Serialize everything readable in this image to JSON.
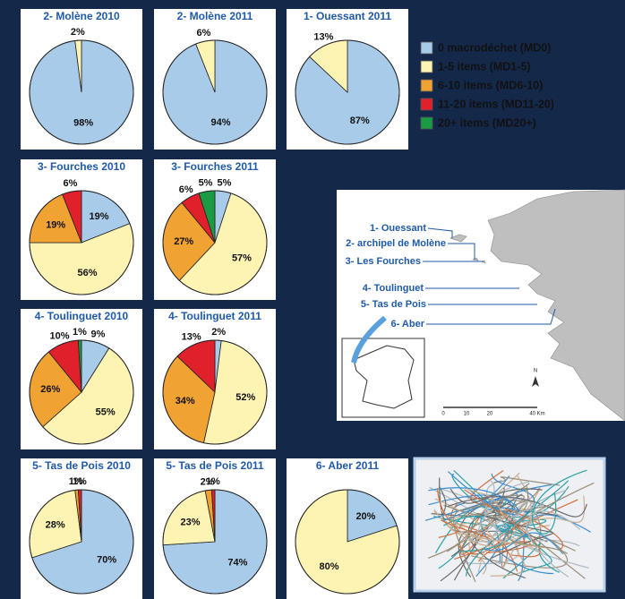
{
  "legend": {
    "labels": [
      "0 macrodéchet (MD0)",
      "1-5 items (MD1-5)",
      "6-10 items (MD6-10)",
      "11-20 items (MD11-20)",
      "20+ items (MD20+)"
    ],
    "colors": [
      "#a9cbea",
      "#fdf4b4",
      "#f0a232",
      "#e0202a",
      "#1b9a44"
    ]
  },
  "chart_data": [
    {
      "type": "pie",
      "title": "2- Molène 2010",
      "values": [
        98,
        2,
        null,
        null,
        null
      ],
      "value_labels": [
        "98%",
        "2%",
        null,
        null,
        null
      ]
    },
    {
      "type": "pie",
      "title": "2- Molène 2011",
      "values": [
        94,
        6,
        null,
        null,
        null
      ],
      "value_labels": [
        "94%",
        "6%",
        null,
        null,
        null
      ]
    },
    {
      "type": "pie",
      "title": "1- Ouessant 2011",
      "values": [
        87,
        13,
        null,
        null,
        null
      ],
      "value_labels": [
        "87%",
        "13%",
        null,
        null,
        null
      ]
    },
    {
      "type": "pie",
      "title": "3- Fourches 2010",
      "values": [
        19,
        56,
        19,
        6,
        null
      ],
      "value_labels": [
        "19%",
        "56%",
        "19%",
        "6%",
        null
      ]
    },
    {
      "type": "pie",
      "title": "3- Fourches 2011",
      "values": [
        5,
        57,
        27,
        6,
        5
      ],
      "value_labels": [
        "5%",
        "57%",
        "27%",
        "6%",
        "5%"
      ]
    },
    {
      "type": "pie",
      "title": "4- Toulinguet 2010",
      "values": [
        9,
        55,
        26,
        10,
        1
      ],
      "value_labels": [
        "9%",
        "55%",
        "26%",
        "10%",
        "1%"
      ]
    },
    {
      "type": "pie",
      "title": "4- Toulinguet 2011",
      "values": [
        2,
        52,
        34,
        13,
        null
      ],
      "value_labels": [
        "2%",
        "52%",
        "34%",
        "13%",
        null
      ]
    },
    {
      "type": "pie",
      "title": "5- Tas de Pois 2010",
      "values": [
        70,
        28,
        1,
        1,
        null
      ],
      "value_labels": [
        "70%",
        "28%",
        "1%",
        "1%",
        null
      ]
    },
    {
      "type": "pie",
      "title": "5- Tas de Pois 2011",
      "values": [
        74,
        23,
        2,
        1,
        null
      ],
      "value_labels": [
        "74%",
        "23%",
        "2%",
        "1%",
        null
      ]
    },
    {
      "type": "pie",
      "title": "6- Aber 2011",
      "values": [
        20,
        80,
        null,
        null,
        null
      ],
      "value_labels": [
        "20%",
        "80%",
        null,
        null,
        null
      ]
    }
  ],
  "map": {
    "labels": [
      "1- Ouessant",
      "2- archipel de Molène",
      "3- Les Fourches",
      "4- Toulinguet",
      "5- Tas de Pois",
      "6- Aber"
    ],
    "scale": [
      "0",
      "10",
      "20",
      "40 Km"
    ],
    "north": "N"
  }
}
